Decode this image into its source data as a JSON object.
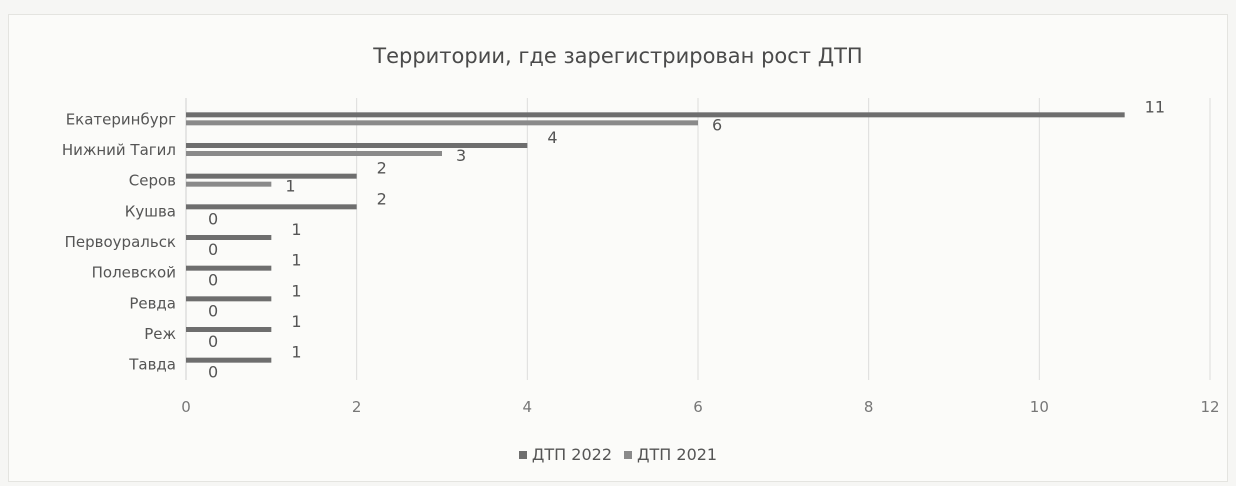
{
  "chart_data": {
    "type": "bar",
    "orientation": "horizontal",
    "title": "Территории, где зарегистрирован рост ДТП",
    "categories": [
      "Екатеринбург",
      "Нижний Тагил",
      "Серов",
      "Кушва",
      "Первоуральск",
      "Полевской",
      "Ревда",
      "Реж",
      "Тавда"
    ],
    "series": [
      {
        "name": "ДТП 2022",
        "values": [
          11,
          4,
          2,
          2,
          1,
          1,
          1,
          1,
          1
        ],
        "color": "#6e6e6e"
      },
      {
        "name": "ДТП 2021",
        "values": [
          6,
          3,
          1,
          0,
          0,
          0,
          0,
          0,
          0
        ],
        "color": "#8a8a8a"
      }
    ],
    "xlim": [
      0,
      12
    ],
    "xticks": [
      0,
      2,
      4,
      6,
      8,
      10,
      12
    ],
    "grid": "vertical",
    "legend": "bottom"
  }
}
